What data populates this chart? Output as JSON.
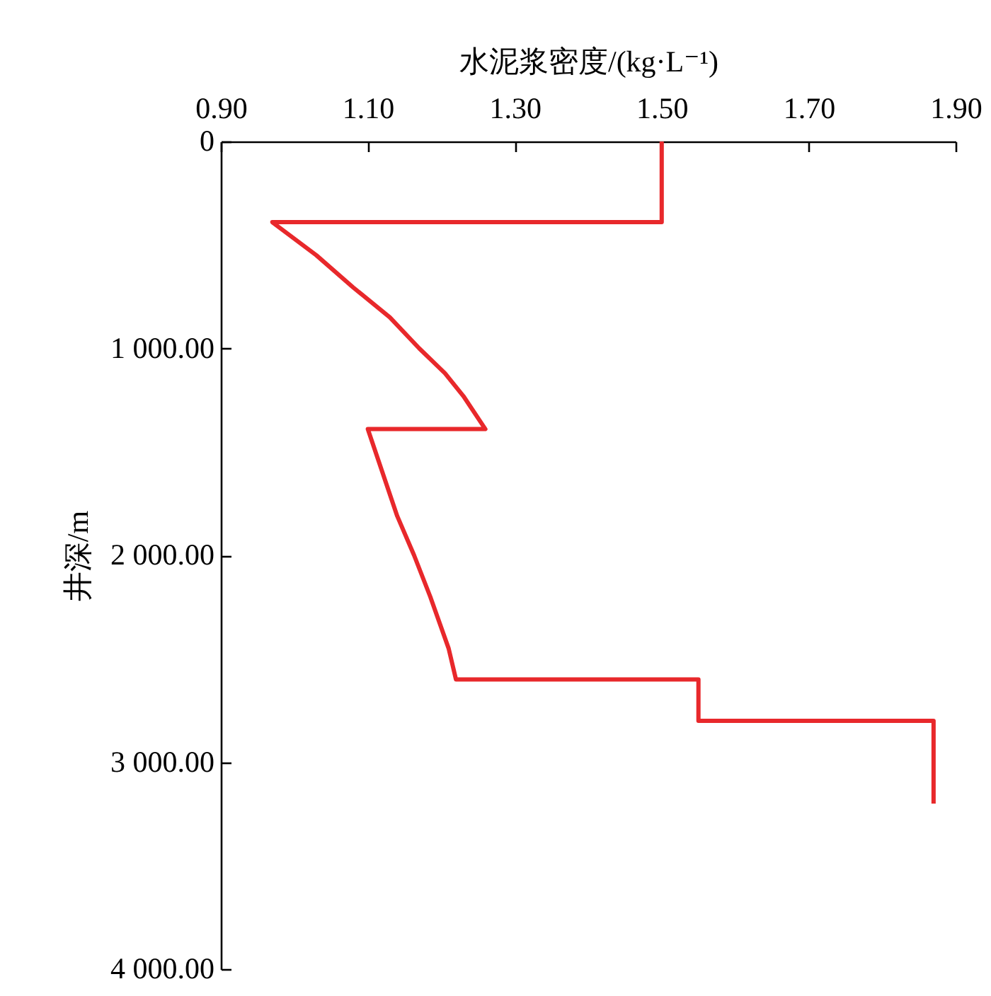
{
  "chart_data": {
    "type": "line",
    "xlabel": "水泥浆密度/(kg·L⁻¹)",
    "ylabel": "井深/m",
    "x": [
      1.5,
      1.5,
      0.97,
      1.03,
      1.08,
      1.13,
      1.17,
      1.205,
      1.23,
      1.26,
      1.1,
      1.12,
      1.14,
      1.163,
      1.185,
      1.21,
      1.22,
      1.55,
      1.55,
      1.87,
      1.87
    ],
    "series": [
      {
        "color": "#e8282b",
        "values": [
          0,
          390,
          390,
          550,
          705,
          850,
          1000,
          1120,
          1230,
          1390,
          1390,
          1600,
          1810,
          2000,
          2200,
          2450,
          2600,
          2600,
          2800,
          2800,
          3200
        ]
      }
    ],
    "xlim": [
      0.9,
      1.9
    ],
    "xticks": [
      {
        "value": 0.9,
        "label": "0.90"
      },
      {
        "value": 1.1,
        "label": "1.10"
      },
      {
        "value": 1.3,
        "label": "1.30"
      },
      {
        "value": 1.5,
        "label": "1.50"
      },
      {
        "value": 1.7,
        "label": "1.70"
      },
      {
        "value": 1.9,
        "label": "1.90"
      }
    ],
    "ylim": [
      4000,
      0
    ],
    "yticks": [
      0,
      {
        "value": 1000,
        "label": "1 000.00"
      },
      {
        "value": 2000,
        "label": "2 000.00"
      },
      {
        "value": 3000,
        "label": "3 000.00"
      },
      {
        "value": 4000,
        "label": "4 000.00"
      }
    ],
    "grid": false,
    "line_style": "solid",
    "marker": "none"
  }
}
